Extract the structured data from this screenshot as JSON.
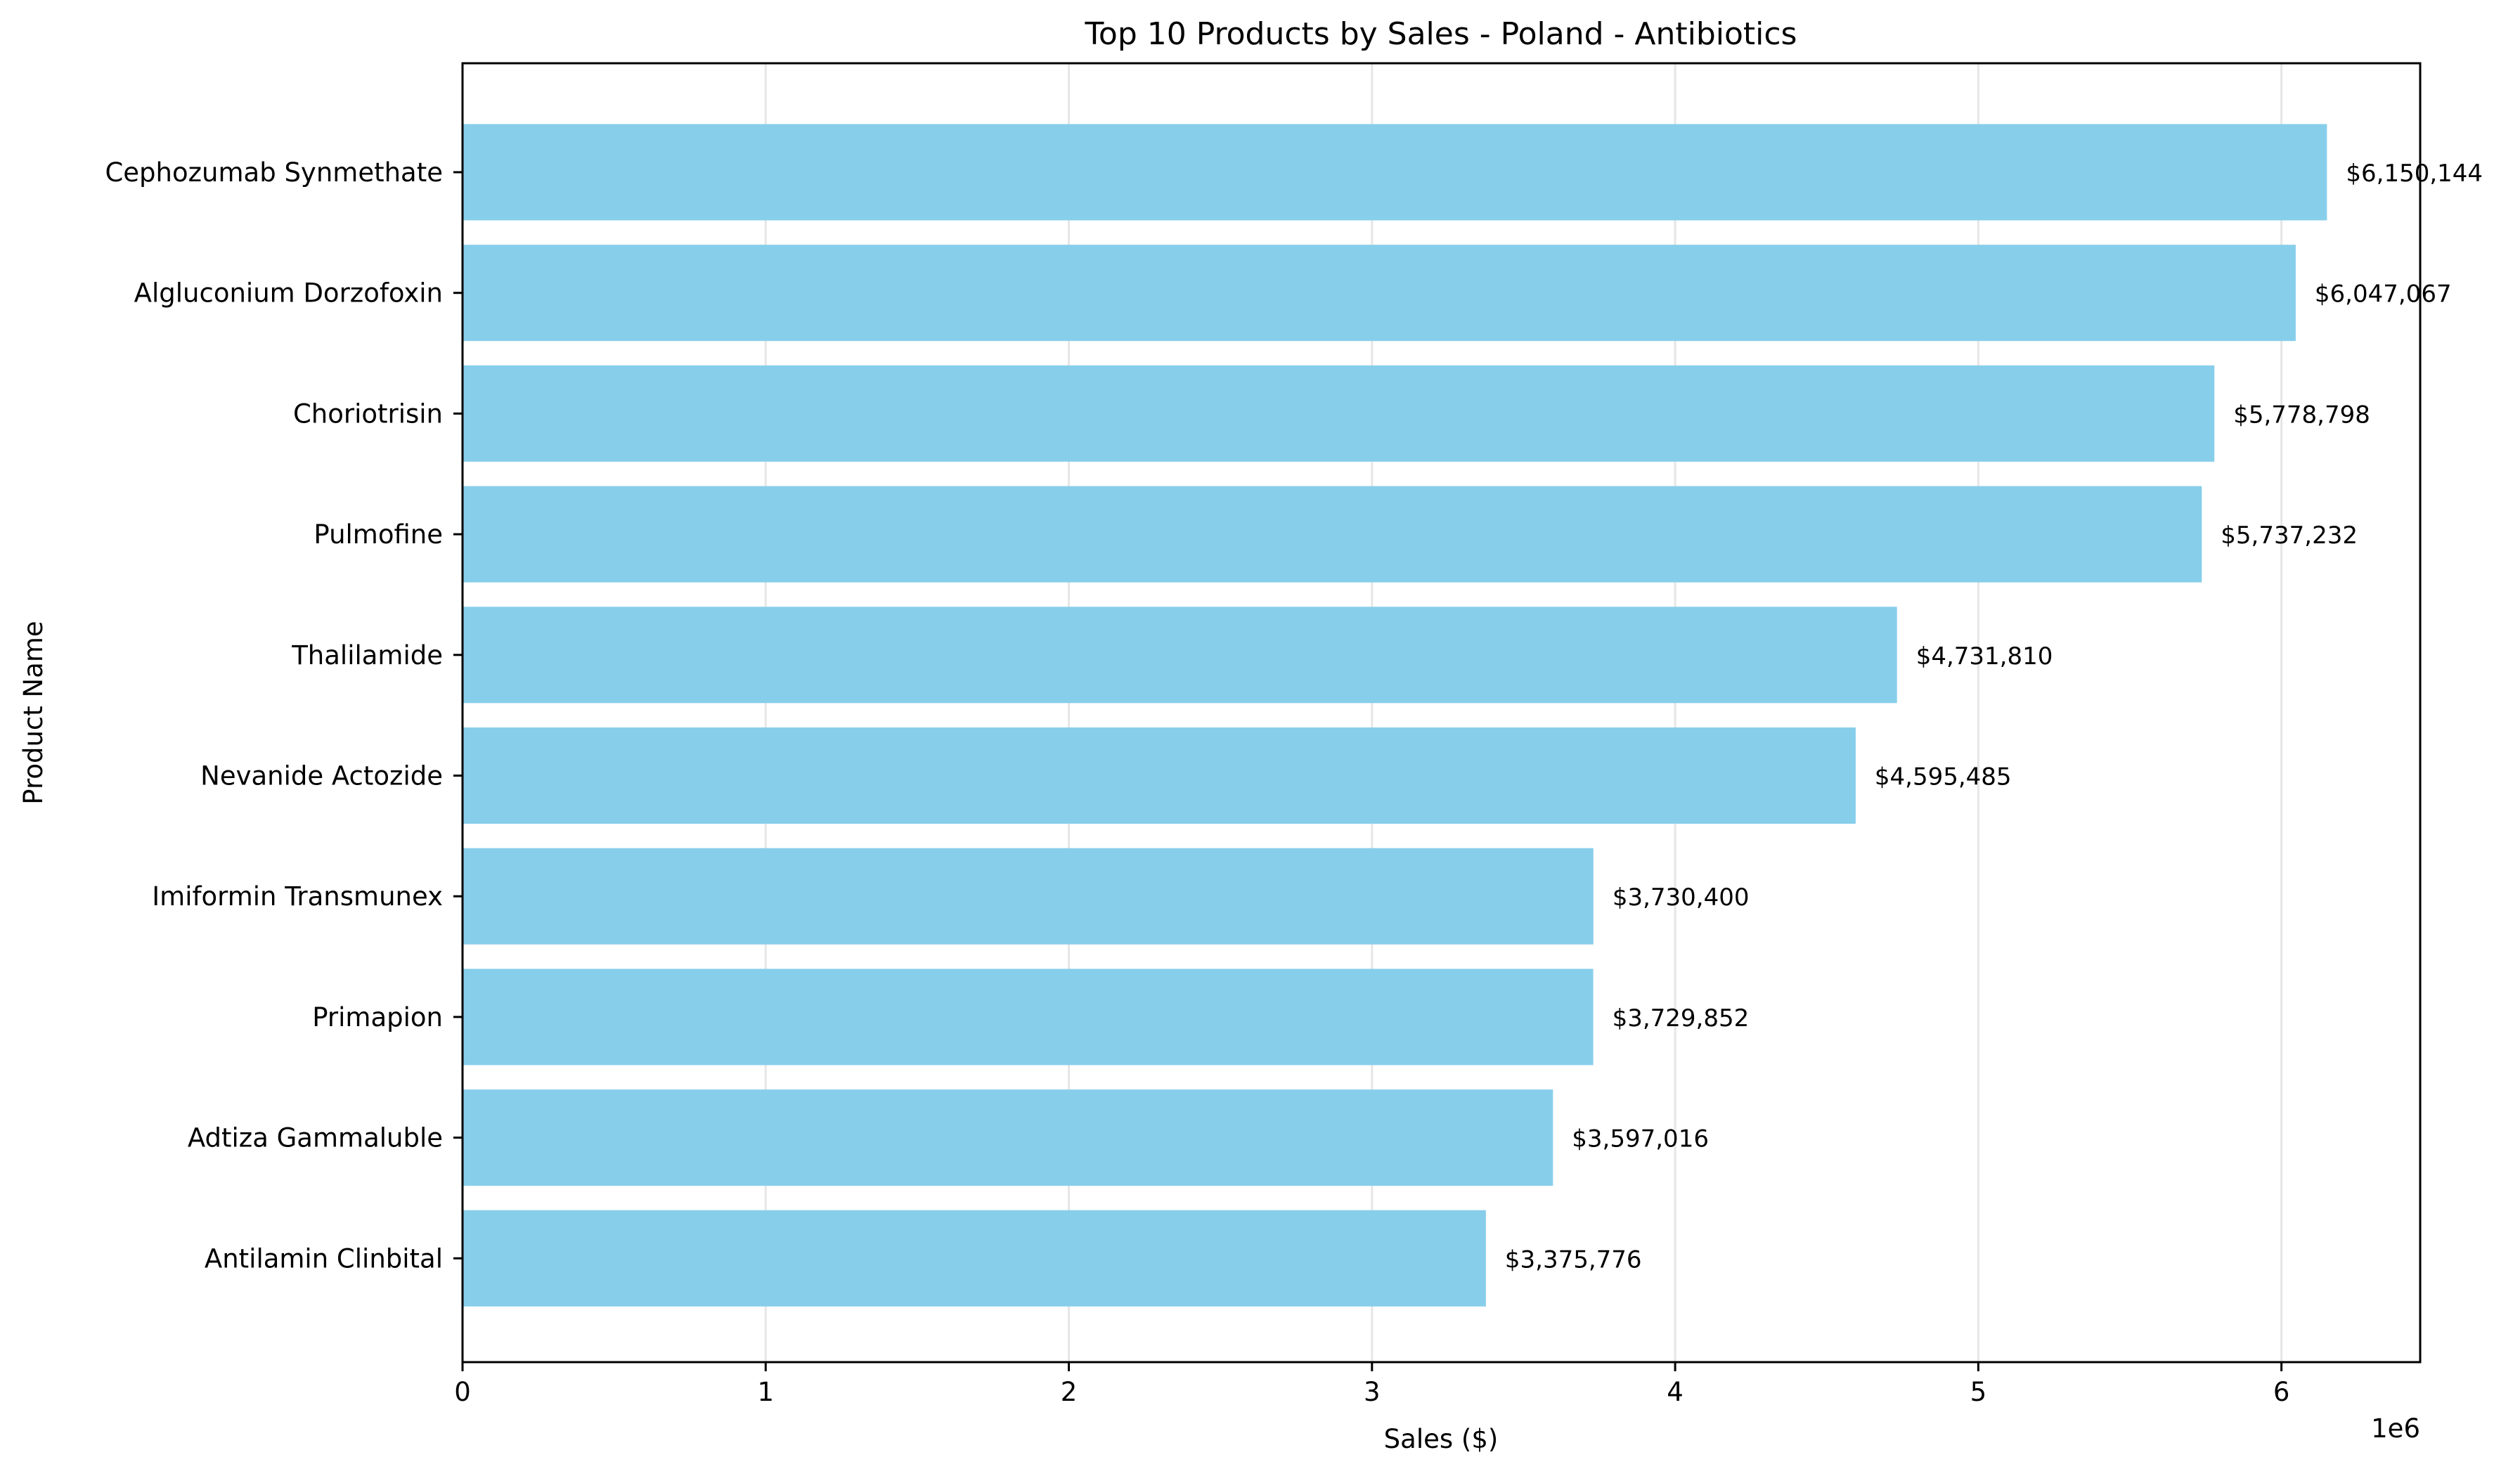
{
  "chart_data": {
    "type": "bar",
    "orientation": "horizontal",
    "title": "Top 10 Products by Sales - Poland - Antibiotics",
    "xlabel": "Sales ($)",
    "ylabel": "Product Name",
    "x_offset_text": "1e6",
    "xlim": [
      0,
      6457651
    ],
    "x_ticks": [
      0,
      1000000,
      2000000,
      3000000,
      4000000,
      5000000,
      6000000
    ],
    "x_tick_labels": [
      "0",
      "1",
      "2",
      "3",
      "4",
      "5",
      "6"
    ],
    "grid": {
      "x": true,
      "y": false
    },
    "legend": "none",
    "categories": [
      "Cephozumab Synmethate",
      "Algluconium Dorzofoxin",
      "Choriotrisin",
      "Pulmofine",
      "Thalilamide",
      "Nevanide Actozide",
      "Imiformin Transmunex",
      "Primapion",
      "Adtiza Gammaluble",
      "Antilamin Clinbital"
    ],
    "values": [
      6150144,
      6047067,
      5778798,
      5737232,
      4731810,
      4595485,
      3730400,
      3729852,
      3597016,
      3375776
    ],
    "value_labels": [
      "$6,150,144",
      "$6,047,067",
      "$5,778,798",
      "$5,737,232",
      "$4,731,810",
      "$4,595,485",
      "$3,730,400",
      "$3,729,852",
      "$3,597,016",
      "$3,375,776"
    ],
    "colors": {
      "bar": "#87CEEB",
      "grid": "#e6e6e6",
      "axis": "#000000"
    }
  }
}
